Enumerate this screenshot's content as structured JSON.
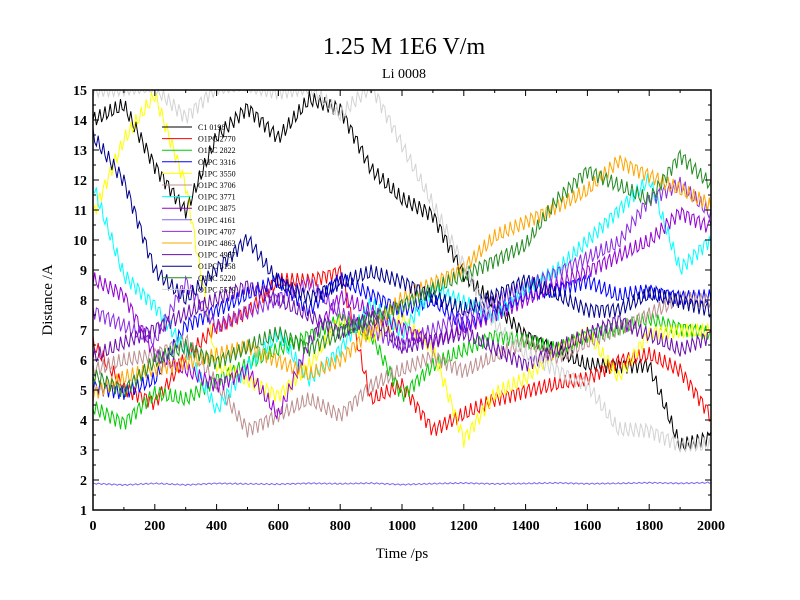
{
  "chart_data": {
    "type": "line",
    "title": "1.25 M 1E6 V/m",
    "subtitle": "Li 0008",
    "xlabel": "Time /ps",
    "ylabel": "Distance /A",
    "xlim": [
      0,
      2000
    ],
    "ylim": [
      1,
      15
    ],
    "xticks": [
      "0",
      "200",
      "400",
      "600",
      "800",
      "1000",
      "1200",
      "1400",
      "1600",
      "1800",
      "2000"
    ],
    "yticks": [
      "1",
      "2",
      "3",
      "4",
      "5",
      "6",
      "7",
      "8",
      "9",
      "10",
      "11",
      "12",
      "13",
      "14",
      "15"
    ],
    "legend_position": "upper-left inside",
    "x": [
      0,
      100,
      200,
      300,
      400,
      500,
      600,
      700,
      800,
      900,
      1000,
      1100,
      1200,
      1300,
      1400,
      1500,
      1600,
      1700,
      1800,
      1900,
      2000
    ],
    "series": [
      {
        "name": "C1 0198",
        "color": "#000000",
        "values": [
          14.0,
          14.5,
          12.5,
          11.0,
          13.5,
          14.5,
          13.5,
          14.8,
          14.5,
          12.5,
          11.5,
          11.0,
          9.0,
          8.0,
          7.0,
          6.5,
          6.0,
          6.0,
          6.0,
          3.3,
          3.6
        ]
      },
      {
        "name": "O1PC 2770",
        "color": "#ff0000",
        "values": [
          6.5,
          5.0,
          4.5,
          6.0,
          7.0,
          7.5,
          8.5,
          8.5,
          8.8,
          4.5,
          5.0,
          3.5,
          4.0,
          4.5,
          4.8,
          5.0,
          5.2,
          5.8,
          6.0,
          5.5,
          4.0
        ]
      },
      {
        "name": "O1PC 2822",
        "color": "#00cc00",
        "values": [
          4.5,
          4.0,
          5.0,
          4.8,
          5.5,
          6.0,
          6.5,
          7.0,
          7.5,
          7.0,
          5.0,
          6.0,
          6.5,
          7.0,
          6.8,
          6.5,
          7.0,
          7.2,
          7.5,
          7.2,
          7.0
        ]
      },
      {
        "name": "O1PC 3316",
        "color": "#0000ff",
        "values": [
          5.0,
          4.8,
          5.2,
          7.0,
          7.5,
          8.0,
          8.5,
          7.5,
          8.5,
          8.0,
          7.5,
          7.8,
          7.0,
          7.5,
          8.0,
          8.2,
          8.5,
          8.0,
          8.2,
          8.0,
          8.0
        ]
      },
      {
        "name": "O1PC 3550",
        "color": "#ffff00",
        "values": [
          11.0,
          13.5,
          15.0,
          12.0,
          6.0,
          5.5,
          5.0,
          6.0,
          7.5,
          7.0,
          7.5,
          6.5,
          3.5,
          5.0,
          5.5,
          6.5,
          7.0,
          5.5,
          7.0,
          7.0,
          7.0
        ]
      },
      {
        "name": "O1PC 3706",
        "color": "#bc8f8f",
        "values": [
          5.5,
          5.8,
          6.0,
          6.5,
          5.0,
          3.5,
          4.0,
          4.5,
          4.0,
          5.0,
          5.5,
          6.0,
          5.5,
          6.0,
          6.5,
          6.0,
          6.5,
          7.0,
          7.5,
          8.0,
          8.0
        ]
      },
      {
        "name": "O1PC 3771",
        "color": "#00ffff",
        "values": [
          12.0,
          9.0,
          8.0,
          6.5,
          4.5,
          6.0,
          7.0,
          5.5,
          6.5,
          8.0,
          7.0,
          8.5,
          8.0,
          7.5,
          8.5,
          9.0,
          10.0,
          11.0,
          12.0,
          9.0,
          10.0
        ]
      },
      {
        "name": "O1PC 3875",
        "color": "#9400d3",
        "values": [
          8.5,
          8.0,
          6.0,
          5.5,
          5.0,
          5.5,
          4.0,
          6.5,
          8.0,
          7.5,
          7.0,
          6.5,
          7.0,
          7.5,
          8.0,
          8.5,
          9.0,
          9.5,
          10.0,
          11.0,
          10.5
        ]
      },
      {
        "name": "O1PC 4161",
        "color": "#7b68ee",
        "values": [
          1.9,
          1.85,
          1.9,
          1.85,
          1.9,
          1.88,
          1.87,
          1.9,
          1.88,
          1.9,
          1.85,
          1.88,
          1.9,
          1.87,
          1.88,
          1.9,
          1.87,
          1.88,
          1.9,
          1.88,
          1.9
        ]
      },
      {
        "name": "O1PC 4707",
        "color": "#8a2be2",
        "values": [
          7.5,
          7.0,
          6.5,
          8.5,
          7.0,
          7.5,
          8.0,
          8.5,
          7.5,
          7.0,
          6.5,
          7.0,
          7.5,
          8.0,
          8.5,
          9.0,
          9.5,
          10.0,
          11.5,
          12.0,
          11.0
        ]
      },
      {
        "name": "O1PC 4863",
        "color": "#ffa500",
        "values": [
          5.0,
          5.5,
          5.8,
          6.0,
          6.2,
          6.5,
          6.0,
          5.5,
          6.0,
          7.0,
          8.0,
          8.5,
          9.0,
          10.0,
          10.5,
          11.0,
          11.5,
          12.5,
          12.0,
          11.5,
          11.0
        ]
      },
      {
        "name": "O1PC 4967",
        "color": "#6a0dad",
        "values": [
          6.0,
          6.5,
          7.0,
          7.5,
          8.0,
          8.5,
          8.0,
          7.5,
          7.0,
          7.5,
          6.5,
          6.8,
          7.0,
          6.5,
          6.0,
          6.5,
          7.0,
          7.5,
          7.0,
          6.5,
          7.0
        ]
      },
      {
        "name": "O1PC 5158",
        "color": "#00008b",
        "values": [
          13.5,
          12.0,
          9.0,
          8.0,
          9.0,
          10.0,
          8.5,
          8.0,
          8.5,
          8.8,
          8.5,
          8.0,
          7.5,
          8.0,
          8.5,
          8.0,
          7.5,
          7.5,
          8.0,
          7.8,
          7.5
        ]
      },
      {
        "name": "O1PC 5220",
        "color": "#228b22",
        "values": [
          5.5,
          5.0,
          6.0,
          6.5,
          6.0,
          6.5,
          7.0,
          6.5,
          7.0,
          7.5,
          8.0,
          8.5,
          9.0,
          9.5,
          10.0,
          11.5,
          12.5,
          12.0,
          11.5,
          13.0,
          12.0
        ]
      },
      {
        "name": "O1PC 5519",
        "color": "#d3d3d3",
        "values": [
          15.0,
          15.0,
          15.0,
          14.0,
          15.0,
          15.0,
          14.8,
          15.0,
          14.0,
          15.0,
          13.0,
          11.0,
          9.0,
          7.0,
          6.0,
          5.5,
          5.0,
          3.5,
          3.5,
          3.0,
          3.0
        ]
      }
    ]
  }
}
